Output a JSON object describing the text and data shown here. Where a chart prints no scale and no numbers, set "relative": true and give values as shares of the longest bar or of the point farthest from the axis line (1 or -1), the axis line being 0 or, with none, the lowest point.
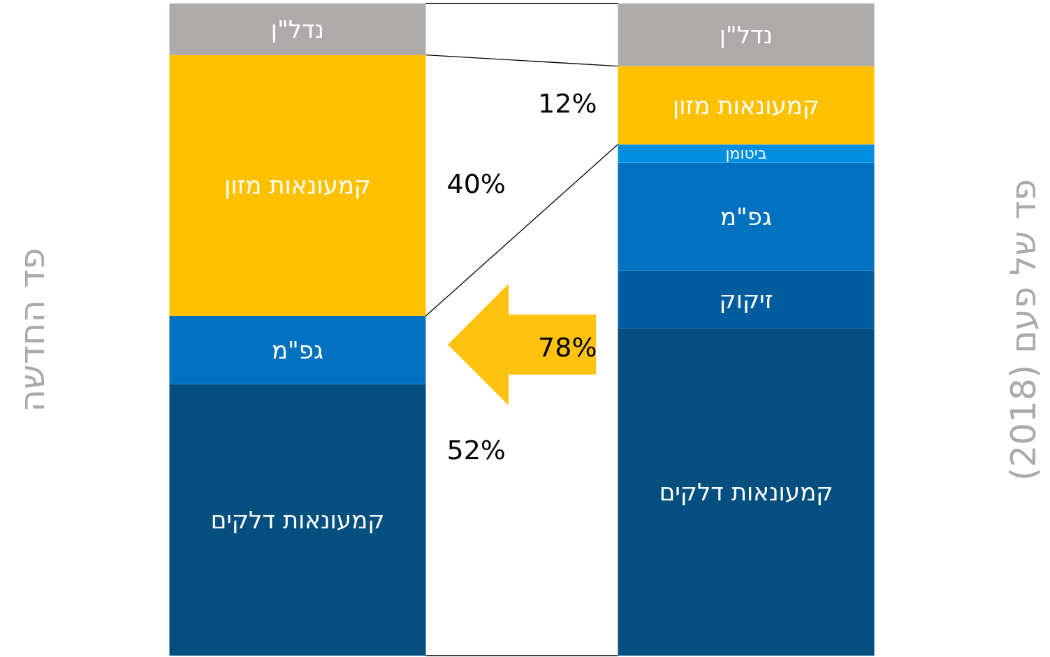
{
  "chart_data": {
    "type": "bar",
    "stacked": true,
    "relative": true,
    "legend": false,
    "categories": [
      "פד החדשה",
      "פד של פעם (2018)"
    ],
    "series": [
      {
        "name": "קמעונאות דלקים",
        "color": "#024f80",
        "values": [
          0.416,
          0.502
        ]
      },
      {
        "name": "זיקוק",
        "color": "#005c9e",
        "values": [
          null,
          0.088
        ]
      },
      {
        "name": "גפ\"מ",
        "color": "#0070c0",
        "values": [
          0.105,
          0.166
        ]
      },
      {
        "name": "ביטומן",
        "color": "#008ee0",
        "values": [
          null,
          0.028
        ]
      },
      {
        "name": "קמעונאות מזון",
        "color": "#ffc000",
        "values": [
          0.4,
          0.12
        ]
      },
      {
        "name": "נדל\"ן",
        "color": "#aeaaaa",
        "values": [
          0.079,
          0.096
        ]
      }
    ],
    "annotations": [
      "40%",
      "52%",
      "12%",
      "78%"
    ]
  }
}
